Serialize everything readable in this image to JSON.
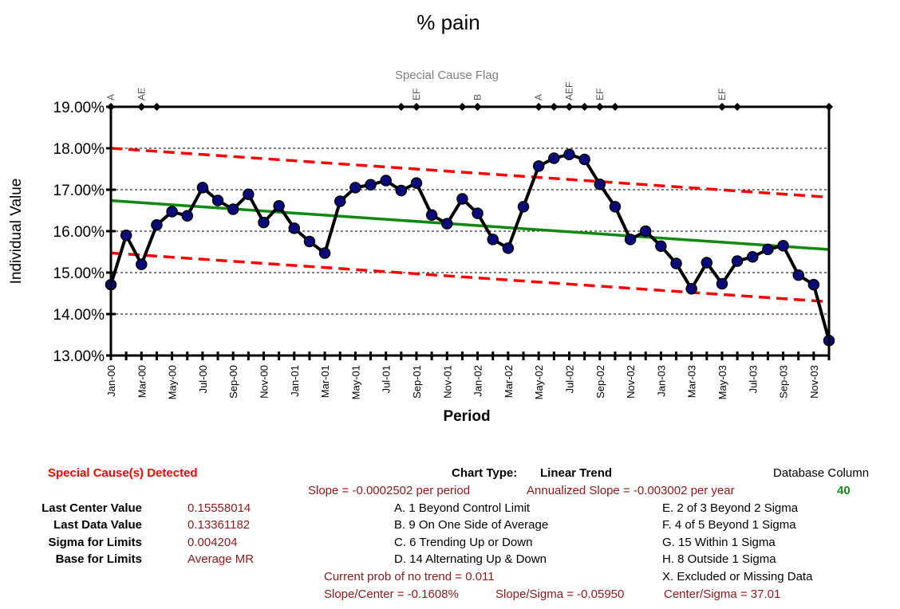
{
  "chart_data": {
    "type": "line",
    "title": "% pain",
    "flag_label": "Special Cause Flag",
    "xlabel": "Period",
    "ylabel": "Individual Value",
    "ylim": [
      0.13,
      0.19
    ],
    "y_ticks": [
      "19.00%",
      "18.00%",
      "17.00%",
      "16.00%",
      "15.00%",
      "14.00%",
      "13.00%"
    ],
    "y_tick_values": [
      0.19,
      0.18,
      0.17,
      0.16,
      0.15,
      0.14,
      0.13
    ],
    "x_tick_labels": [
      "Jan-00",
      "Mar-00",
      "May-00",
      "Jul-00",
      "Sep-00",
      "Nov-00",
      "Jan-01",
      "Mar-01",
      "May-01",
      "Jul-01",
      "Sep-01",
      "Nov-01",
      "Jan-02",
      "Mar-02",
      "May-02",
      "Jul-02",
      "Sep-02",
      "Nov-02",
      "Jan-03",
      "Mar-03",
      "May-03",
      "Jul-03",
      "Sep-03",
      "Nov-03"
    ],
    "grid": "horizontal dashed",
    "series": [
      {
        "name": "Individual Value",
        "color": "#000000",
        "marker_color": "#0a0a7a",
        "values": [
          0.1471,
          0.159,
          0.152,
          0.1615,
          0.1647,
          0.1637,
          0.1705,
          0.1674,
          0.1653,
          0.1689,
          0.1621,
          0.1661,
          0.1607,
          0.1575,
          0.1547,
          0.1672,
          0.1705,
          0.1712,
          0.1722,
          0.1698,
          0.1716,
          0.1639,
          0.1618,
          0.1678,
          0.1643,
          0.158,
          0.1559,
          0.1659,
          0.1757,
          0.1776,
          0.1785,
          0.1773,
          0.1713,
          0.1659,
          0.158,
          0.16,
          0.1564,
          0.1522,
          0.1461,
          0.1524,
          0.1473,
          0.1528,
          0.1538,
          0.1556,
          0.1565,
          0.1494,
          0.1471,
          0.1336
        ]
      },
      {
        "name": "Center",
        "color": "#118811",
        "values_start_end": [
          0.16737,
          0.15558
        ]
      },
      {
        "name": "Upper Limit",
        "color": "#ff0000",
        "values_start_end": [
          0.18001,
          0.16819
        ]
      },
      {
        "name": "Lower Limit",
        "color": "#ff0000",
        "values_start_end": [
          0.15473,
          0.14297
        ]
      }
    ],
    "flags": [
      {
        "index": 0,
        "label": "A"
      },
      {
        "index": 2,
        "label": "AE"
      },
      {
        "index": 3,
        "label": ""
      },
      {
        "index": 19,
        "label": ""
      },
      {
        "index": 20,
        "label": "EF"
      },
      {
        "index": 23,
        "label": ""
      },
      {
        "index": 24,
        "label": "B"
      },
      {
        "index": 28,
        "label": "A"
      },
      {
        "index": 29,
        "label": ""
      },
      {
        "index": 30,
        "label": "AEF"
      },
      {
        "index": 31,
        "label": ""
      },
      {
        "index": 32,
        "label": "EF"
      },
      {
        "index": 33,
        "label": ""
      },
      {
        "index": 40,
        "label": "EF"
      },
      {
        "index": 41,
        "label": ""
      },
      {
        "index": 47,
        "label": ""
      }
    ]
  },
  "info": {
    "special_cause_title": "Special Cause(s) Detected",
    "chart_type_label": "Chart Type:",
    "chart_type_value": "Linear Trend",
    "db_column_label": "Database Column",
    "db_column_value": "40",
    "slope_text": "Slope = -0.0002502 per period",
    "annualized_slope_text": "Annualized Slope = -0.003002 per year",
    "stats": [
      {
        "label": "Last Center Value",
        "value": "0.15558014"
      },
      {
        "label": "Last Data Value",
        "value": "0.13361182"
      },
      {
        "label": "Sigma for Limits",
        "value": "0.004204"
      },
      {
        "label": "Base for Limits",
        "value": "Average MR"
      }
    ],
    "rules_left": [
      "A.  1 Beyond Control Limit",
      "B.  9 On One Side of Average",
      "C.  6 Trending Up or Down",
      "D.  14 Alternating  Up & Down"
    ],
    "rules_right": [
      "E.   2 of 3 Beyond 2 Sigma",
      "F.   4 of 5 Beyond 1 Sigma",
      "G.   15 Within 1 Sigma",
      "H.   8 Outside 1 Sigma",
      "X.   Excluded or Missing Data"
    ],
    "prob_text": "Current prob of no trend = 0.011",
    "slope_center_text": "Slope/Center = -0.1608%",
    "slope_sigma_text": "Slope/Sigma = -0.05950",
    "center_sigma_text": "Center/Sigma = 37.01"
  }
}
